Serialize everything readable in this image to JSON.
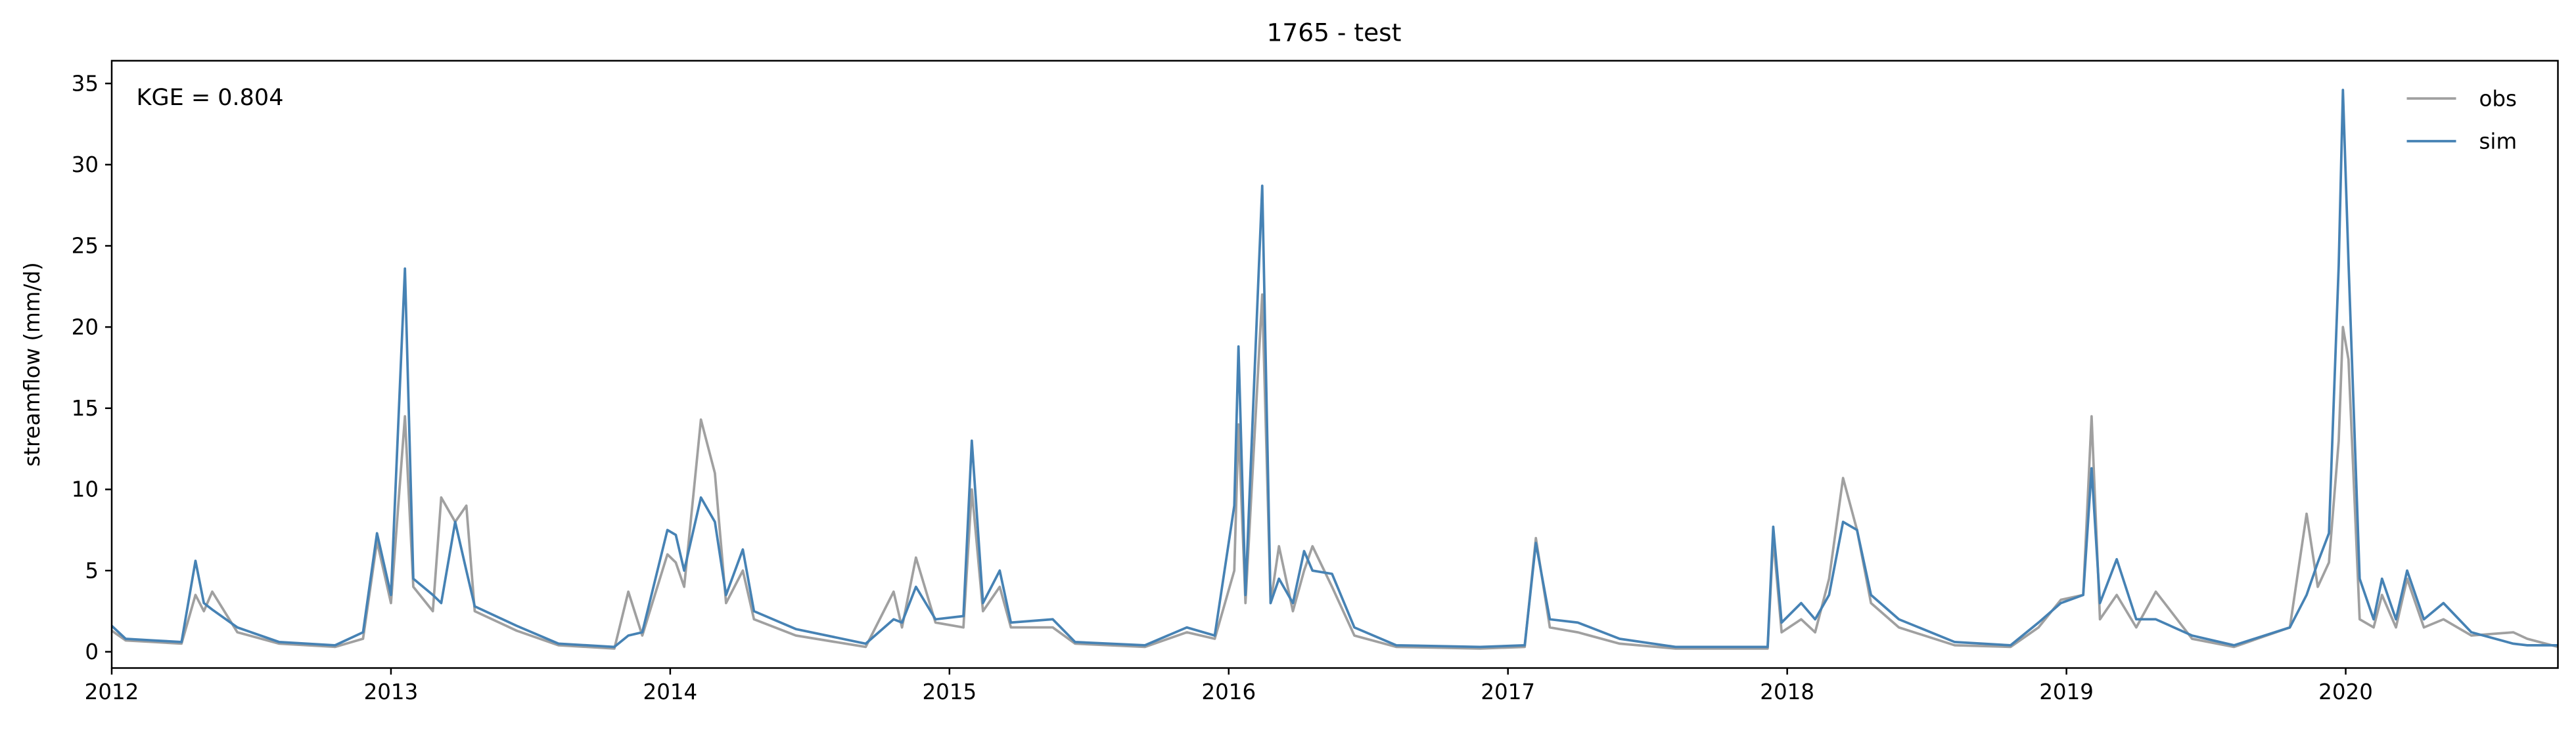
{
  "chart_data": {
    "type": "line",
    "title": "1765 - test",
    "ylabel": "streamflow (mm/d)",
    "annotation": "KGE = 0.804",
    "x": [
      2012.0,
      2012.05,
      2012.15,
      2012.25,
      2012.3,
      2012.33,
      2012.36,
      2012.45,
      2012.6,
      2012.8,
      2012.9,
      2012.95,
      2013.0,
      2013.05,
      2013.08,
      2013.15,
      2013.18,
      2013.23,
      2013.27,
      2013.3,
      2013.45,
      2013.6,
      2013.8,
      2013.85,
      2013.9,
      2013.99,
      2014.02,
      2014.05,
      2014.11,
      2014.16,
      2014.2,
      2014.26,
      2014.3,
      2014.45,
      2014.7,
      2014.8,
      2014.83,
      2014.88,
      2014.95,
      2015.05,
      2015.08,
      2015.12,
      2015.18,
      2015.22,
      2015.37,
      2015.45,
      2015.7,
      2015.85,
      2015.95,
      2016.02,
      2016.035,
      2016.06,
      2016.12,
      2016.15,
      2016.18,
      2016.23,
      2016.27,
      2016.3,
      2016.37,
      2016.45,
      2016.6,
      2016.9,
      2017.06,
      2017.1,
      2017.15,
      2017.25,
      2017.4,
      2017.6,
      2017.93,
      2017.95,
      2017.98,
      2018.05,
      2018.1,
      2018.15,
      2018.2,
      2018.25,
      2018.3,
      2018.4,
      2018.6,
      2018.8,
      2018.9,
      2018.98,
      2019.06,
      2019.09,
      2019.12,
      2019.18,
      2019.25,
      2019.32,
      2019.45,
      2019.6,
      2019.8,
      2019.86,
      2019.9,
      2019.94,
      2019.975,
      2019.99,
      2020.01,
      2020.05,
      2020.1,
      2020.13,
      2020.18,
      2020.22,
      2020.28,
      2020.35,
      2020.45,
      2020.6,
      2020.65,
      2020.76
    ],
    "series": [
      {
        "name": "obs",
        "color": "#a0a0a0",
        "values": [
          1.3,
          0.7,
          0.6,
          0.5,
          3.5,
          2.5,
          3.7,
          1.2,
          0.5,
          0.3,
          0.8,
          6.8,
          3.0,
          14.5,
          4.0,
          2.5,
          9.5,
          8.0,
          9.0,
          2.5,
          1.3,
          0.4,
          0.2,
          3.7,
          1.0,
          6.0,
          5.5,
          4.0,
          14.3,
          11.0,
          3.0,
          5.0,
          2.0,
          1.0,
          0.3,
          3.7,
          1.5,
          5.8,
          1.8,
          1.5,
          10.0,
          2.5,
          4.0,
          1.5,
          1.5,
          0.5,
          0.3,
          1.2,
          0.8,
          5.0,
          14.0,
          3.0,
          22.0,
          3.0,
          6.5,
          2.5,
          5.0,
          6.5,
          4.0,
          1.0,
          0.3,
          0.2,
          0.3,
          7.0,
          1.5,
          1.2,
          0.5,
          0.2,
          0.2,
          7.0,
          1.2,
          2.0,
          1.2,
          4.5,
          10.7,
          7.5,
          3.0,
          1.5,
          0.4,
          0.3,
          1.5,
          3.2,
          3.5,
          14.5,
          2.0,
          3.5,
          1.5,
          3.7,
          0.8,
          0.3,
          1.5,
          8.5,
          4.0,
          5.5,
          13.0,
          20.0,
          18.0,
          2.0,
          1.5,
          3.5,
          1.5,
          4.5,
          1.5,
          2.0,
          1.0,
          1.2,
          0.8,
          0.3
        ]
      },
      {
        "name": "sim",
        "color": "#4682b4",
        "values": [
          1.6,
          0.8,
          0.7,
          0.6,
          5.6,
          3.0,
          2.6,
          1.5,
          0.6,
          0.4,
          1.2,
          7.3,
          3.5,
          23.6,
          4.5,
          3.5,
          3.0,
          8.0,
          5.0,
          2.8,
          1.6,
          0.5,
          0.3,
          1.0,
          1.2,
          7.5,
          7.2,
          5.0,
          9.5,
          8.0,
          3.5,
          6.3,
          2.5,
          1.4,
          0.5,
          2.0,
          1.8,
          4.0,
          2.0,
          2.2,
          13.0,
          3.0,
          5.0,
          1.8,
          2.0,
          0.6,
          0.4,
          1.5,
          1.0,
          9.0,
          18.8,
          3.5,
          28.7,
          3.0,
          4.5,
          3.0,
          6.2,
          5.0,
          4.8,
          1.5,
          0.4,
          0.3,
          0.4,
          6.7,
          2.0,
          1.8,
          0.8,
          0.3,
          0.3,
          7.7,
          1.8,
          3.0,
          2.0,
          3.5,
          8.0,
          7.5,
          3.5,
          2.0,
          0.6,
          0.4,
          1.8,
          3.0,
          3.5,
          11.3,
          3.0,
          5.7,
          2.0,
          2.0,
          1.0,
          0.4,
          1.5,
          3.5,
          5.5,
          7.3,
          23.8,
          34.6,
          24.0,
          4.5,
          2.0,
          4.5,
          2.0,
          5.0,
          2.0,
          3.0,
          1.2,
          0.5,
          0.4,
          0.4
        ]
      }
    ],
    "xlim": [
      2012,
      2020.76
    ],
    "xticks": [
      2012,
      2013,
      2014,
      2015,
      2016,
      2017,
      2018,
      2019,
      2020
    ],
    "ylim": [
      -1.0,
      36.4
    ],
    "yticks": [
      0,
      5,
      10,
      15,
      20,
      25,
      30,
      35
    ],
    "legend": "upper right"
  }
}
